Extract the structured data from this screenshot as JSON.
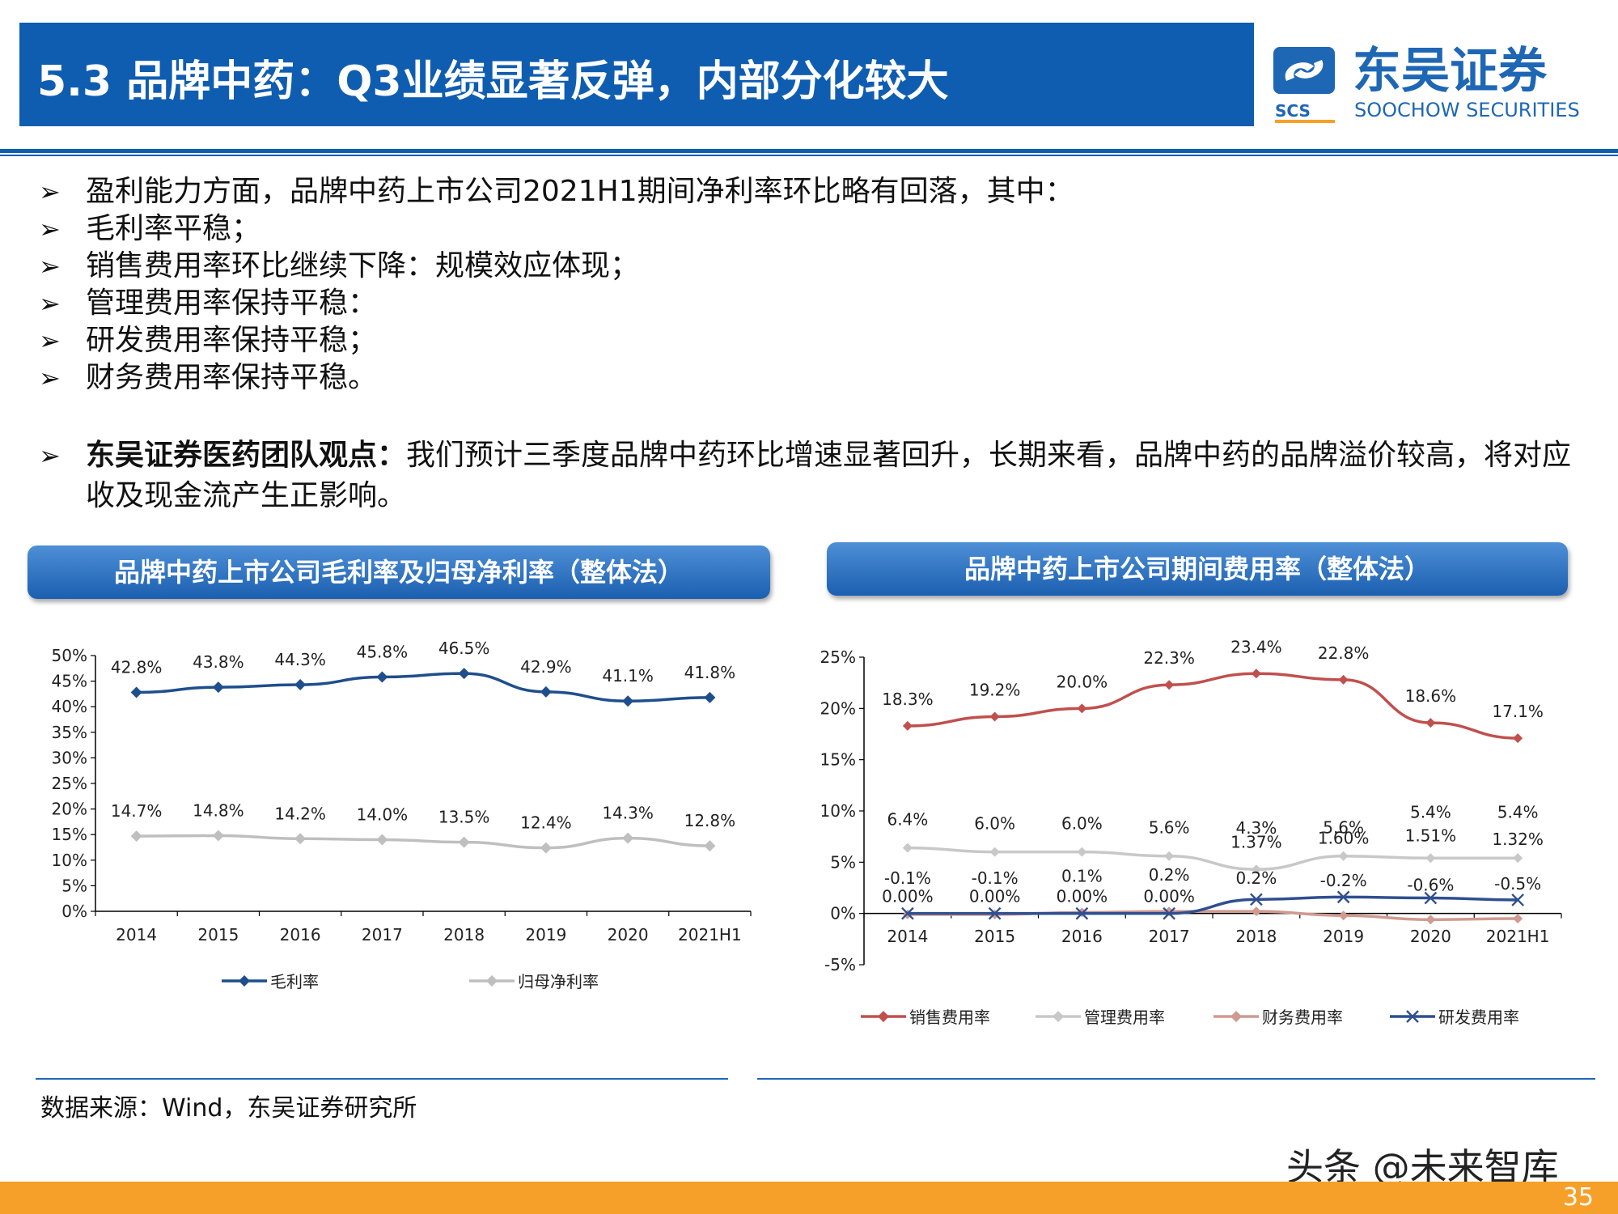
{
  "header": {
    "title": "5.3 品牌中药：Q3业绩显著反弹，内部分化较大",
    "logo_cn": "东吴证券",
    "logo_en": "SOOCHOW SECURITIES",
    "logo_abbr": "SCS"
  },
  "bullets": [
    "盈利能力方面，品牌中药上市公司2021H1期间净利率环比略有回落，其中：",
    "毛利率平稳；",
    "销售费用率环比继续下降：规模效应体现；",
    "管理费用率保持平稳：",
    "研发费用率保持平稳；",
    "财务费用率保持平稳。"
  ],
  "view": {
    "bold": "东吴证券医药团队观点：",
    "text": "我们预计三季度品牌中药环比增速显著回升，长期来看，品牌中药的品牌溢价较高，将对应收及现金流产生正影响。"
  },
  "bullet_symbol": "➢",
  "chart_titles": [
    "品牌中药上市公司毛利率及归母净利率（整体法）",
    "品牌中药上市公司期间费用率（整体法）"
  ],
  "chart_data": [
    {
      "type": "line",
      "categories": [
        "2014",
        "2015",
        "2016",
        "2017",
        "2018",
        "2019",
        "2020",
        "2021H1"
      ],
      "ylim": [
        0,
        50
      ],
      "yticks": [
        "0%",
        "5%",
        "10%",
        "15%",
        "20%",
        "25%",
        "30%",
        "35%",
        "40%",
        "45%",
        "50%"
      ],
      "series": [
        {
          "name": "毛利率",
          "color": "#1F4E8C",
          "values": [
            42.8,
            43.8,
            44.3,
            45.8,
            46.5,
            42.9,
            41.1,
            41.8
          ],
          "labels": [
            "42.8%",
            "43.8%",
            "44.3%",
            "45.8%",
            "46.5%",
            "42.9%",
            "41.1%",
            "41.8%"
          ]
        },
        {
          "name": "归母净利率",
          "color": "#BFBFBF",
          "values": [
            14.7,
            14.8,
            14.2,
            14.0,
            13.5,
            12.4,
            14.3,
            12.8
          ],
          "labels": [
            "14.7%",
            "14.8%",
            "14.2%",
            "14.0%",
            "13.5%",
            "12.4%",
            "14.3%",
            "12.8%"
          ]
        }
      ],
      "legend_position": "bottom"
    },
    {
      "type": "line",
      "categories": [
        "2014",
        "2015",
        "2016",
        "2017",
        "2018",
        "2019",
        "2020",
        "2021H1"
      ],
      "ylim": [
        -5,
        25
      ],
      "yticks": [
        "-5%",
        "0%",
        "5%",
        "10%",
        "15%",
        "20%",
        "25%"
      ],
      "series": [
        {
          "name": "销售费用率",
          "color": "#C0504D",
          "values": [
            18.3,
            19.2,
            20.0,
            22.3,
            23.4,
            22.8,
            18.6,
            17.1
          ],
          "labels": [
            "18.3%",
            "19.2%",
            "20.0%",
            "22.3%",
            "23.4%",
            "22.8%",
            "18.6%",
            "17.1%"
          ]
        },
        {
          "name": "管理费用率",
          "color": "#C8C8C8",
          "values": [
            6.4,
            6.0,
            6.0,
            5.6,
            4.3,
            5.6,
            5.4,
            5.4
          ],
          "labels": [
            "6.4%",
            "6.0%",
            "6.0%",
            "5.6%",
            "4.3%",
            "5.6%",
            "5.4%",
            "5.4%"
          ]
        },
        {
          "name": "财务费用率",
          "color": "#D09A90",
          "values": [
            -0.1,
            -0.1,
            0.1,
            0.2,
            0.2,
            -0.2,
            -0.6,
            -0.5
          ],
          "labels": [
            "-0.1%",
            "-0.1%",
            "0.1%",
            "0.2%",
            "0.2%",
            "-0.2%",
            "-0.6%",
            "-0.5%"
          ]
        },
        {
          "name": "研发费用率",
          "color": "#2F4F8F",
          "values": [
            0.0,
            0.0,
            0.0,
            0.0,
            1.37,
            1.6,
            1.51,
            1.32
          ],
          "labels": [
            "0.00%",
            "0.00%",
            "0.00%",
            "0.00%",
            "1.37%",
            "1.60%",
            "1.51%",
            "1.32%"
          ]
        }
      ],
      "legend_position": "bottom"
    }
  ],
  "footer": {
    "source": "数据来源：Wind，东吴证券研究所",
    "watermark": "头条 @未来智库",
    "page": "35"
  },
  "colors": {
    "brand_blue": "#0F5DB0",
    "accent_orange": "#F7A029"
  }
}
